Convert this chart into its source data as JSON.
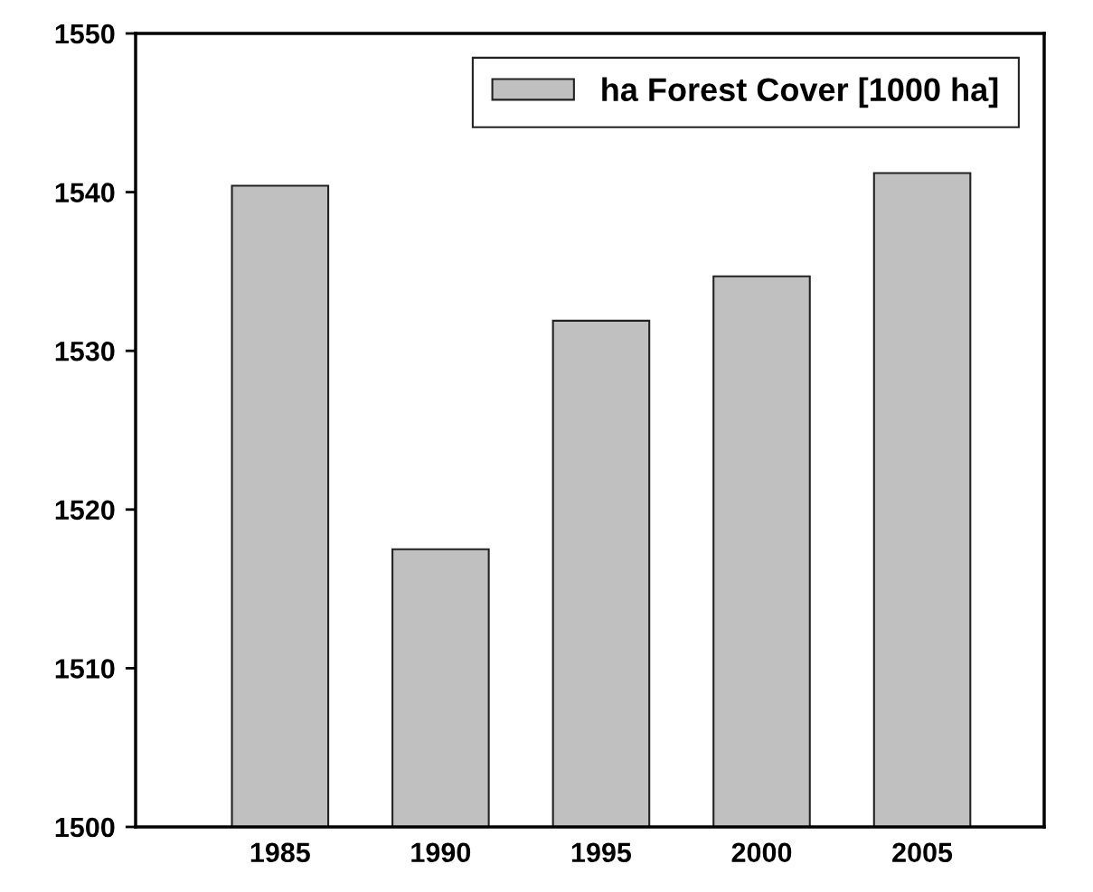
{
  "chart_data": {
    "type": "bar",
    "categories": [
      "1985",
      "1990",
      "1995",
      "2000",
      "2005"
    ],
    "series": [
      {
        "name": "ha Forest Cover [1000 ha]",
        "color": "#c0c0c0",
        "values": [
          1540.4,
          1517.5,
          1531.9,
          1534.7,
          1541.2
        ]
      }
    ],
    "ylim": [
      1500,
      1550
    ],
    "yticks": [
      1500,
      1510,
      1520,
      1530,
      1540,
      1550
    ],
    "grid": false,
    "legend": "top right"
  }
}
